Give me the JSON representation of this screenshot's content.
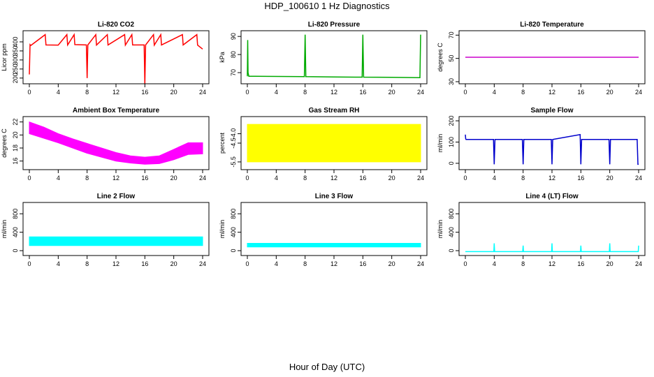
{
  "title": "HDP_100610  1 Hz Diagnostics",
  "xlabel": "Hour of Day (UTC)",
  "chart_data": [
    {
      "type": "line",
      "title": "Li-820 CO2",
      "ylabel": "Licor ppm",
      "xlim": [
        0,
        24
      ],
      "ylim": [
        180,
        450
      ],
      "xticks": [
        "0",
        "4",
        "8",
        "12",
        "16",
        "20",
        "24"
      ],
      "yticks": [
        "200",
        "250",
        "300",
        "350",
        "400"
      ],
      "color": "#ff0000",
      "series": [
        {
          "x": [
            0,
            0.1,
            0.2,
            0.3,
            2.2,
            2.3,
            4,
            5.2,
            5.3,
            6.2,
            6.3,
            7.9,
            8.0,
            8.1,
            9.2,
            9.3,
            10.8,
            10.9,
            13.2,
            13.3,
            14.2,
            14.3,
            15.9,
            16.0,
            16.1,
            17.2,
            17.3,
            18.2,
            18.3,
            21.2,
            21.3,
            23.2,
            23.3,
            24
          ],
          "y": [
            220,
            385,
            380,
            383,
            440,
            383,
            382,
            440,
            383,
            440,
            385,
            383,
            200,
            383,
            440,
            382,
            440,
            383,
            440,
            382,
            440,
            383,
            383,
            165,
            383,
            440,
            382,
            440,
            383,
            440,
            383,
            440,
            382,
            360
          ]
        }
      ]
    },
    {
      "type": "line",
      "title": "Li-820 Pressure",
      "ylabel": "kPa",
      "xlim": [
        0,
        24
      ],
      "ylim": [
        65,
        92
      ],
      "xticks": [
        "0",
        "4",
        "8",
        "12",
        "16",
        "20",
        "24"
      ],
      "yticks": [
        "70",
        "80",
        "90"
      ],
      "color": "#00aa00",
      "series": [
        {
          "x": [
            0,
            0.05,
            0.1,
            0.2,
            1,
            7.9,
            8.0,
            8.1,
            12,
            15.9,
            16.0,
            16.1,
            20,
            23.9,
            24.0
          ],
          "y": [
            68,
            88,
            70,
            68,
            68,
            67.8,
            91,
            67.8,
            67.6,
            67.5,
            91,
            67.5,
            67.4,
            67.2,
            91
          ]
        }
      ]
    },
    {
      "type": "line",
      "title": "Li-820 Temperature",
      "ylabel": "degrees C",
      "xlim": [
        0,
        24
      ],
      "ylim": [
        30,
        72
      ],
      "xticks": [
        "0",
        "4",
        "8",
        "12",
        "16",
        "20",
        "24"
      ],
      "yticks": [
        "30",
        "50",
        "70"
      ],
      "color": "#cc00cc",
      "series": [
        {
          "x": [
            0,
            24
          ],
          "y": [
            51,
            51
          ]
        }
      ]
    },
    {
      "type": "area",
      "title": "Ambient Box Temperature",
      "ylabel": "degrees C",
      "xlim": [
        0,
        24
      ],
      "ylim": [
        15,
        22.5
      ],
      "xticks": [
        "0",
        "4",
        "8",
        "12",
        "16",
        "20",
        "24"
      ],
      "yticks": [
        "16",
        "18",
        "20",
        "22"
      ],
      "color": "#ff00ff",
      "series": [
        {
          "name": "upper",
          "x": [
            0,
            2,
            4,
            6,
            8,
            10,
            12,
            14,
            16,
            18,
            20,
            22,
            24
          ],
          "y": [
            22,
            21.2,
            20.2,
            19.4,
            18.7,
            18,
            17.3,
            16.8,
            16.6,
            16.8,
            17.8,
            18.8,
            18.8
          ]
        },
        {
          "name": "lower",
          "x": [
            0,
            2,
            4,
            6,
            8,
            10,
            12,
            14,
            16,
            18,
            20,
            22,
            24
          ],
          "y": [
            20.2,
            19.5,
            18.8,
            18,
            17.2,
            16.6,
            16,
            15.7,
            15.5,
            15.6,
            16.2,
            17,
            17.1
          ]
        }
      ]
    },
    {
      "type": "area",
      "title": "Gas Stream RH",
      "ylabel": "percent",
      "xlim": [
        0,
        24
      ],
      "ylim": [
        -5.8,
        -3.2
      ],
      "xticks": [
        "0",
        "4",
        "8",
        "12",
        "16",
        "20",
        "24"
      ],
      "yticks": [
        "-5.5",
        "-4.5",
        "-4.0"
      ],
      "color": "#ffff00",
      "series": [
        {
          "name": "upper",
          "x": [
            0,
            24
          ],
          "y": [
            -3.5,
            -3.5
          ]
        },
        {
          "name": "lower",
          "x": [
            0,
            24
          ],
          "y": [
            -5.5,
            -5.5
          ]
        }
      ]
    },
    {
      "type": "line",
      "title": "Sample Flow",
      "ylabel": "ml/min",
      "xlim": [
        0,
        24
      ],
      "ylim": [
        -20,
        210
      ],
      "xticks": [
        "0",
        "4",
        "8",
        "12",
        "16",
        "20",
        "24"
      ],
      "yticks": [
        "0",
        "100",
        "200"
      ],
      "color": "#0000cc",
      "series": [
        {
          "x": [
            0,
            0.05,
            0.1,
            3.9,
            4.0,
            4.1,
            7.9,
            8.0,
            8.1,
            11.9,
            12.0,
            12.1,
            15.9,
            16.0,
            16.1,
            19.9,
            20.0,
            20.1,
            23.8,
            23.9,
            24.0
          ],
          "y": [
            135,
            115,
            112,
            112,
            -5,
            112,
            112,
            -5,
            112,
            112,
            -5,
            112,
            135,
            -5,
            112,
            112,
            -5,
            112,
            112,
            -5,
            -5
          ]
        }
      ]
    },
    {
      "type": "area",
      "title": "Line 2 Flow",
      "ylabel": "ml/min",
      "xlim": [
        0,
        24
      ],
      "ylim": [
        -60,
        1000
      ],
      "xticks": [
        "0",
        "4",
        "8",
        "12",
        "16",
        "20",
        "24"
      ],
      "yticks": [
        "0",
        "400",
        "800"
      ],
      "color": "#00ffff",
      "series": [
        {
          "name": "upper",
          "x": [
            0,
            24
          ],
          "y": [
            300,
            300
          ]
        },
        {
          "name": "lower",
          "x": [
            0,
            24
          ],
          "y": [
            110,
            110
          ]
        }
      ]
    },
    {
      "type": "area",
      "title": "Line 3 Flow",
      "ylabel": "ml/min",
      "xlim": [
        0,
        24
      ],
      "ylim": [
        -60,
        1000
      ],
      "xticks": [
        "0",
        "4",
        "8",
        "12",
        "16",
        "20",
        "24"
      ],
      "yticks": [
        "0",
        "400",
        "800"
      ],
      "color": "#00ffff",
      "series": [
        {
          "name": "upper",
          "x": [
            0,
            24
          ],
          "y": [
            160,
            160
          ]
        },
        {
          "name": "lower",
          "x": [
            0,
            24
          ],
          "y": [
            80,
            80
          ]
        }
      ]
    },
    {
      "type": "line",
      "title": "Line 4 (LT) Flow",
      "ylabel": "ml/min",
      "xlim": [
        0,
        24
      ],
      "ylim": [
        -60,
        1000
      ],
      "xticks": [
        "0",
        "4",
        "8",
        "12",
        "16",
        "20",
        "24"
      ],
      "yticks": [
        "0",
        "400",
        "800"
      ],
      "color": "#00ffff",
      "series": [
        {
          "x": [
            0,
            3.95,
            4.0,
            4.05,
            7.95,
            8.0,
            8.05,
            11.95,
            12.0,
            12.05,
            15.95,
            16.0,
            16.05,
            19.95,
            20.0,
            20.05,
            23.95,
            24.0
          ],
          "y": [
            -20,
            -20,
            160,
            -20,
            -20,
            110,
            -20,
            -20,
            160,
            -20,
            -20,
            110,
            -20,
            -20,
            160,
            -20,
            -20,
            110
          ]
        }
      ]
    }
  ]
}
